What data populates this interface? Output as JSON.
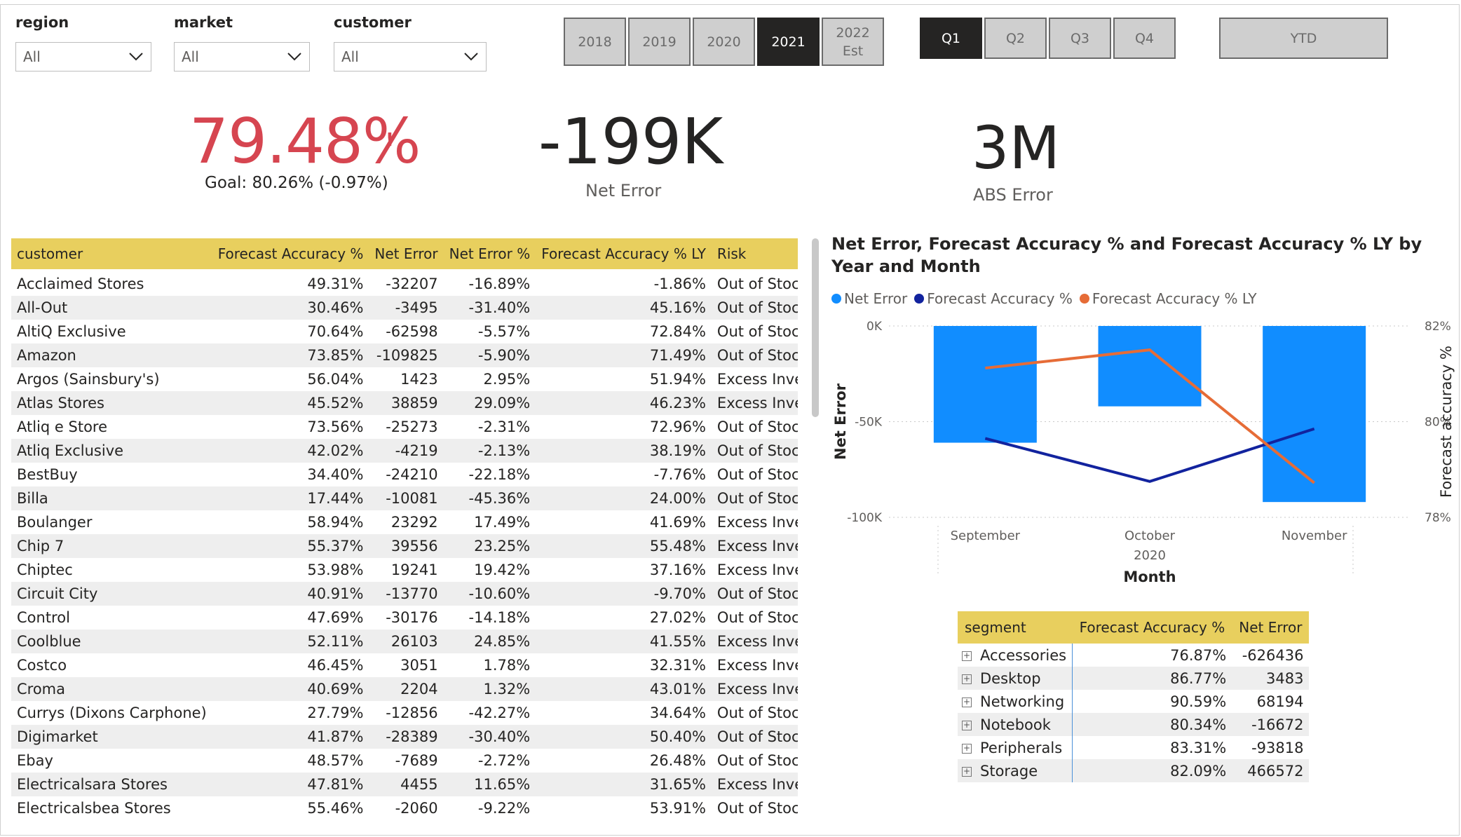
{
  "filters": [
    {
      "label": "region",
      "value": "All"
    },
    {
      "label": "market",
      "value": "All"
    },
    {
      "label": "customer",
      "value": "All"
    }
  ],
  "years": [
    {
      "label": "2018",
      "active": false
    },
    {
      "label": "2019",
      "active": false
    },
    {
      "label": "2020",
      "active": false
    },
    {
      "label": "2021",
      "active": true
    },
    {
      "label": "2022\nEst",
      "line1": "2022",
      "line2": "Est",
      "active": false
    }
  ],
  "quarters": [
    {
      "label": "Q1",
      "active": true
    },
    {
      "label": "Q2",
      "active": false
    },
    {
      "label": "Q3",
      "active": false
    },
    {
      "label": "Q4",
      "active": false
    }
  ],
  "ytd_label": "YTD",
  "kpi": {
    "forecast_accuracy": "79.48%",
    "alert_mark": "!",
    "goal_text": "Goal: 80.26% (-0.97%)",
    "net_error": "-199K",
    "net_error_label": "Net Error",
    "abs_error": "3M",
    "abs_error_label": "ABS Error"
  },
  "colors": {
    "accent_red": "#d64550",
    "header_yellow": "#e8cf5e",
    "bar_blue": "#118dff",
    "line_navy": "#12239e",
    "line_orange": "#e66c37"
  },
  "customer_table": {
    "headers": [
      "customer",
      "Forecast Accuracy %",
      "Net Error",
      "Net Error %",
      "Forecast Accuracy % LY",
      "Risk"
    ],
    "rows": [
      [
        "Acclaimed Stores",
        "49.31%",
        "-32207",
        "-16.89%",
        "-1.86%",
        "Out of Stock"
      ],
      [
        "All-Out",
        "30.46%",
        "-3495",
        "-31.40%",
        "45.16%",
        "Out of Stock"
      ],
      [
        "AltiQ Exclusive",
        "70.64%",
        "-62598",
        "-5.57%",
        "72.84%",
        "Out of Stock"
      ],
      [
        "Amazon",
        "73.85%",
        "-109825",
        "-5.90%",
        "71.49%",
        "Out of Stock"
      ],
      [
        "Argos (Sainsbury's)",
        "56.04%",
        "1423",
        "2.95%",
        "51.94%",
        "Excess Inventory"
      ],
      [
        "Atlas Stores",
        "45.52%",
        "38859",
        "29.09%",
        "46.23%",
        "Excess Inventory"
      ],
      [
        "Atliq e Store",
        "73.56%",
        "-25273",
        "-2.31%",
        "72.96%",
        "Out of Stock"
      ],
      [
        "Atliq Exclusive",
        "42.02%",
        "-4219",
        "-2.13%",
        "38.19%",
        "Out of Stock"
      ],
      [
        "BestBuy",
        "34.40%",
        "-24210",
        "-22.18%",
        "-7.76%",
        "Out of Stock"
      ],
      [
        "Billa",
        "17.44%",
        "-10081",
        "-45.36%",
        "24.00%",
        "Out of Stock"
      ],
      [
        "Boulanger",
        "58.94%",
        "23292",
        "17.49%",
        "41.69%",
        "Excess Inventory"
      ],
      [
        "Chip 7",
        "55.37%",
        "39556",
        "23.25%",
        "55.48%",
        "Excess Inventory"
      ],
      [
        "Chiptec",
        "53.98%",
        "19241",
        "19.42%",
        "37.16%",
        "Excess Inventory"
      ],
      [
        "Circuit City",
        "40.91%",
        "-13770",
        "-10.60%",
        "-9.70%",
        "Out of Stock"
      ],
      [
        "Control",
        "47.69%",
        "-30176",
        "-14.18%",
        "27.02%",
        "Out of Stock"
      ],
      [
        "Coolblue",
        "52.11%",
        "26103",
        "24.85%",
        "41.55%",
        "Excess Inventory"
      ],
      [
        "Costco",
        "46.45%",
        "3051",
        "1.78%",
        "32.31%",
        "Excess Inventory"
      ],
      [
        "Croma",
        "40.69%",
        "2204",
        "1.32%",
        "43.01%",
        "Excess Inventory"
      ],
      [
        "Currys (Dixons Carphone)",
        "27.79%",
        "-12856",
        "-42.27%",
        "34.64%",
        "Out of Stock"
      ],
      [
        "Digimarket",
        "41.87%",
        "-28389",
        "-30.40%",
        "50.40%",
        "Out of Stock"
      ],
      [
        "Ebay",
        "48.57%",
        "-7689",
        "-2.72%",
        "26.48%",
        "Out of Stock"
      ],
      [
        "Electricalsara Stores",
        "47.81%",
        "4455",
        "11.65%",
        "31.65%",
        "Excess Inventory"
      ],
      [
        "Electricalsbea Stores",
        "55.46%",
        "-2060",
        "-9.22%",
        "53.91%",
        "Out of Stock"
      ]
    ]
  },
  "chart_data": {
    "type": "bar",
    "title": "Net Error, Forecast Accuracy % and Forecast Accuracy % LY by Year and Month",
    "categories": [
      "September",
      "October",
      "November"
    ],
    "x_group_label": "2020",
    "xlabel": "Month",
    "ylabel": "Net Error",
    "y2label": "Forecast accuracy %",
    "ylim": [
      -100000,
      0
    ],
    "y_ticks": [
      "0K",
      "-50K",
      "-100K"
    ],
    "y2lim": [
      78,
      82
    ],
    "y2_ticks": [
      "82%",
      "80%",
      "78%"
    ],
    "legend_position": "top-left",
    "series": [
      {
        "name": "Net Error",
        "axis": "left",
        "kind": "bar",
        "values": [
          -61000,
          -42000,
          -92000
        ]
      },
      {
        "name": "Forecast Accuracy %",
        "axis": "right",
        "kind": "line",
        "values": [
          79.65,
          78.75,
          79.85
        ]
      },
      {
        "name": "Forecast Accuracy % LY",
        "axis": "right",
        "kind": "line",
        "values": [
          81.12,
          81.5,
          78.72
        ]
      }
    ]
  },
  "segment_table": {
    "headers": [
      "segment",
      "Forecast Accuracy %",
      "Net Error"
    ],
    "rows": [
      [
        "Accessories",
        "76.87%",
        "-626436"
      ],
      [
        "Desktop",
        "86.77%",
        "3483"
      ],
      [
        "Networking",
        "90.59%",
        "68194"
      ],
      [
        "Notebook",
        "80.34%",
        "-16672"
      ],
      [
        "Peripherals",
        "83.31%",
        "-93818"
      ],
      [
        "Storage",
        "82.09%",
        "466572"
      ]
    ]
  }
}
